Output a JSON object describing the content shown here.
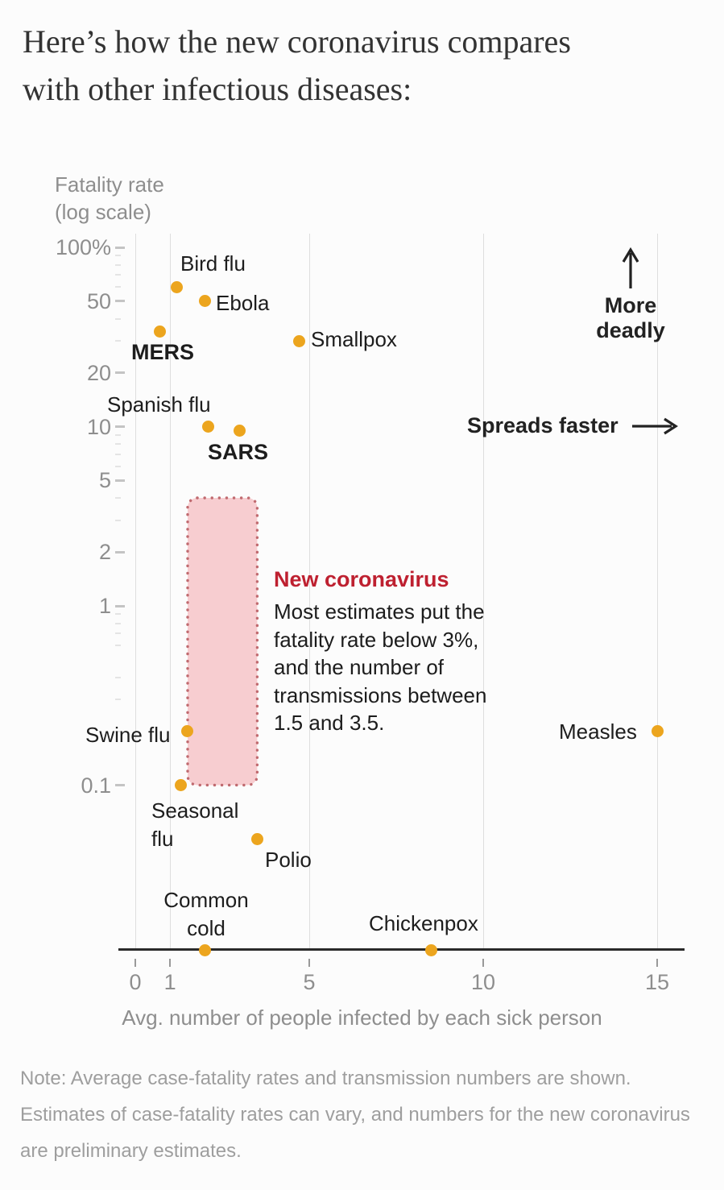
{
  "title": {
    "line1": "Here’s how the new coronavirus compares",
    "line2": "with other infectious diseases:"
  },
  "y_axis": {
    "label_line1": "Fatality rate",
    "label_line2": "(log scale)",
    "tick_labels": [
      "100%",
      "50",
      "20",
      "10",
      "5",
      "2",
      "1",
      "0.1"
    ]
  },
  "x_axis": {
    "tick_labels": [
      "0",
      "1",
      "5",
      "10",
      "15"
    ],
    "label": "Avg. number of people infected by each sick person"
  },
  "direction_hints": {
    "more_deadly_line1": "More",
    "more_deadly_line2": "deadly",
    "spreads_faster": "Spreads faster"
  },
  "annotation": {
    "title": "New coronavirus",
    "body_lines": [
      "Most estimates put the",
      "fatality rate below 3%,",
      "and the number of",
      "transmissions between",
      "1.5 and 3.5."
    ]
  },
  "note_lines": [
    "Note: Average case-fatality rates and transmission numbers are shown.",
    "Estimates of case-fatality rates can vary, and numbers for the new coronavirus",
    "are preliminary estimates."
  ],
  "colors": {
    "dot": "#ECA51E",
    "range_fill": "#F7CDD0",
    "range_border": "#C06A6F",
    "accent_red": "#BE2030",
    "label_dark": "#1D1D1D",
    "axis_gray": "#8E8E8E",
    "note_gray": "#9E9E9E"
  },
  "chart_data": {
    "type": "scatter",
    "title": "Here’s how the new coronavirus compares with other infectious diseases:",
    "xlabel": "Avg. number of people infected by each sick person",
    "ylabel": "Fatality rate (log scale)",
    "y_scale": "log",
    "xlim": [
      0,
      15.8
    ],
    "x_ticks": [
      0,
      1,
      5,
      10,
      15
    ],
    "y_ticks_percent": [
      100,
      50,
      20,
      10,
      5,
      2,
      1,
      0.1
    ],
    "points": [
      {
        "name": "Bird flu",
        "transmission": 1.2,
        "fatality_pct": 60
      },
      {
        "name": "Ebola",
        "transmission": 2.0,
        "fatality_pct": 50
      },
      {
        "name": "MERS",
        "transmission": 0.7,
        "fatality_pct": 34
      },
      {
        "name": "Smallpox",
        "transmission": 4.7,
        "fatality_pct": 30
      },
      {
        "name": "Spanish flu",
        "transmission": 2.1,
        "fatality_pct": 10
      },
      {
        "name": "SARS",
        "transmission": 3.0,
        "fatality_pct": 9.5
      },
      {
        "name": "Swine flu",
        "transmission": 1.5,
        "fatality_pct": 0.2
      },
      {
        "name": "Seasonal flu",
        "transmission": 1.3,
        "fatality_pct": 0.1
      },
      {
        "name": "Polio",
        "transmission": 3.5,
        "fatality_pct": 0.05
      },
      {
        "name": "Measles",
        "transmission": 15,
        "fatality_pct": 0.2
      },
      {
        "name": "Common cold",
        "transmission": 2.0,
        "fatality_pct": 0
      },
      {
        "name": "Chickenpox",
        "transmission": 8.5,
        "fatality_pct": 0
      }
    ],
    "range_box": {
      "label": "New coronavirus",
      "transmission_range": [
        1.5,
        3.5
      ],
      "fatality_pct_range": [
        0.1,
        4
      ]
    }
  }
}
